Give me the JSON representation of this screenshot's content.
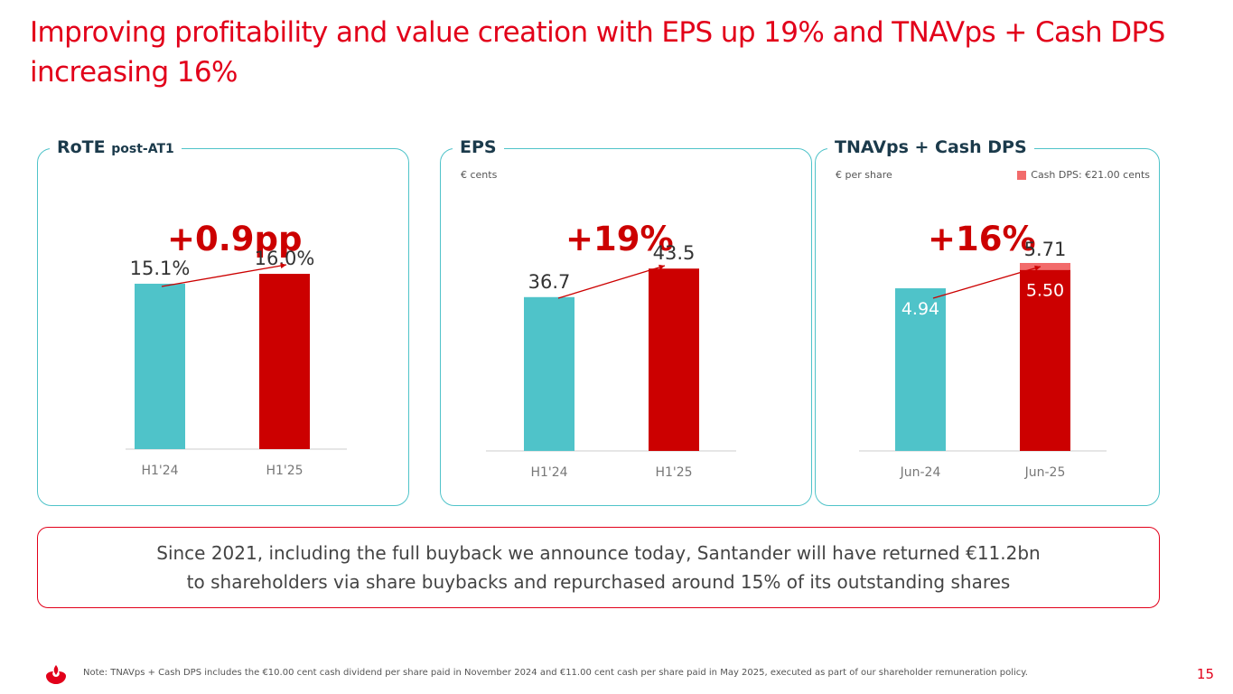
{
  "title": "Improving profitability and value creation with EPS up 19% and TNAVps + Cash DPS increasing 16%",
  "colors": {
    "accent": "#e2001a",
    "teal": "#4fc3c9",
    "red_bar": "#cc0000",
    "cash_dps": "#f26b6b",
    "dark_text": "#1b3a4b"
  },
  "panels": {
    "rote": {
      "title": "RoTE",
      "title_suffix": "post-AT1",
      "growth": "+0.9pp"
    },
    "eps": {
      "title": "EPS",
      "unit": "€ cents",
      "growth": "+19%"
    },
    "tnav": {
      "title": "TNAVps + Cash DPS",
      "unit": "€ per share",
      "legend": "Cash DPS: €21.00 cents",
      "growth": "+16%"
    }
  },
  "chart_data": [
    {
      "type": "bar",
      "title": "RoTE post-AT1",
      "categories": [
        "H1'24",
        "H1'25"
      ],
      "values": [
        15.1,
        16.0
      ],
      "labels": [
        "15.1%",
        "16.0%"
      ],
      "ylim": [
        0,
        16.5
      ]
    },
    {
      "type": "bar",
      "title": "EPS",
      "ylabel": "€ cents",
      "categories": [
        "H1'24",
        "H1'25"
      ],
      "values": [
        36.7,
        43.5
      ],
      "labels": [
        "36.7",
        "43.5"
      ],
      "ylim": [
        0,
        47
      ]
    },
    {
      "type": "bar",
      "stacked": true,
      "title": "TNAVps + Cash DPS",
      "ylabel": "€ per share",
      "categories": [
        "Jun-24",
        "Jun-25"
      ],
      "series": [
        {
          "name": "TNAVps",
          "values": [
            4.94,
            5.5
          ],
          "labels": [
            "4.94",
            "5.50"
          ]
        },
        {
          "name": "Cash DPS: €21.00 cents",
          "values": [
            0,
            0.21
          ]
        }
      ],
      "totals": [
        4.94,
        5.71
      ],
      "total_labels": [
        "",
        "5.71"
      ],
      "ylim": [
        0,
        7.0
      ]
    }
  ],
  "callout": {
    "line1": "Since 2021, including the full buyback we announce today, Santander will have returned €11.2bn",
    "line2": "to shareholders via share buybacks and repurchased around 15% of its outstanding shares"
  },
  "footnote": "Note: TNAVps + Cash DPS includes the €10.00 cent cash dividend per share paid in November 2024 and €11.00 cent cash per share paid in May 2025, executed as part of our shareholder remuneration policy.",
  "page_number": "15",
  "logo_icon": "santander-flame-icon"
}
